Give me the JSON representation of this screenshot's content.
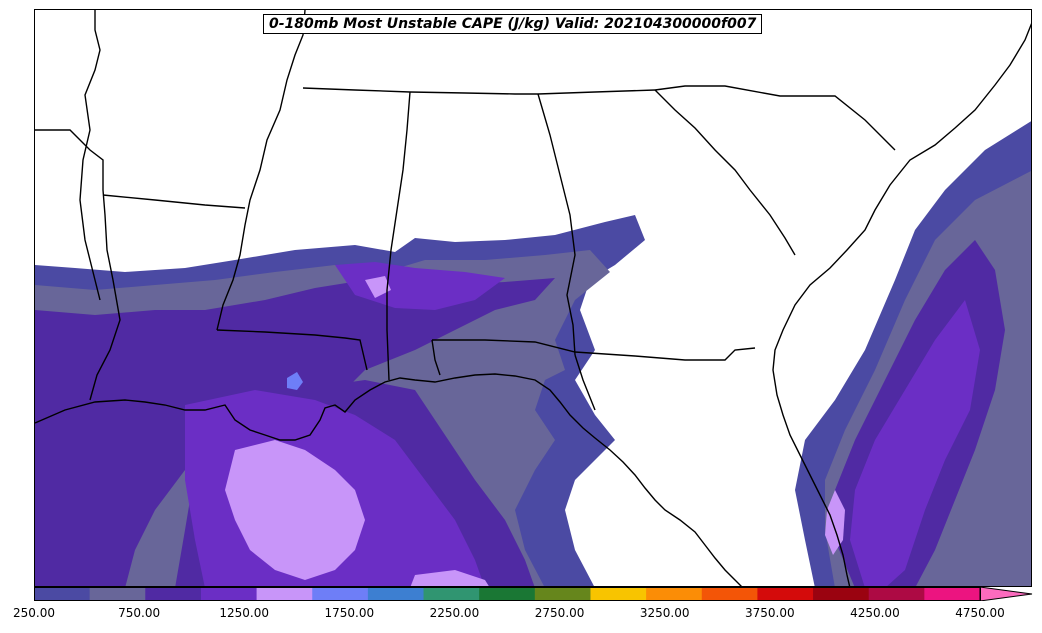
{
  "title": "0-180mb Most Unstable CAPE (J/kg) Valid: 202104300000f007",
  "colorbar": {
    "colors": [
      "#4b4aa3",
      "#686699",
      "#502aa3",
      "#6b2ec5",
      "#c895f9",
      "#6e7ef7",
      "#3d7fd1",
      "#309571",
      "#1a7734",
      "#66861c",
      "#f8c400",
      "#fb8d06",
      "#f35507",
      "#d40b0b",
      "#9a0310",
      "#ad0a44",
      "#ec1480",
      "#fb6bbe"
    ],
    "boundaries": [
      250,
      500,
      750,
      1000,
      1250,
      1500,
      1750,
      2000,
      2250,
      2500,
      2750,
      3000,
      3250,
      3500,
      3750,
      4000,
      4250,
      4500,
      4750
    ],
    "tick_labels": [
      "250.00",
      "750.00",
      "1250.00",
      "1750.00",
      "2250.00",
      "2750.00",
      "3250.00",
      "3750.00",
      "4250.00",
      "4750.00"
    ],
    "extend": "max"
  },
  "map": {
    "region": "Southeastern United States and Gulf of Mexico",
    "field": "0-180mb Most Unstable CAPE",
    "units": "J/kg"
  }
}
